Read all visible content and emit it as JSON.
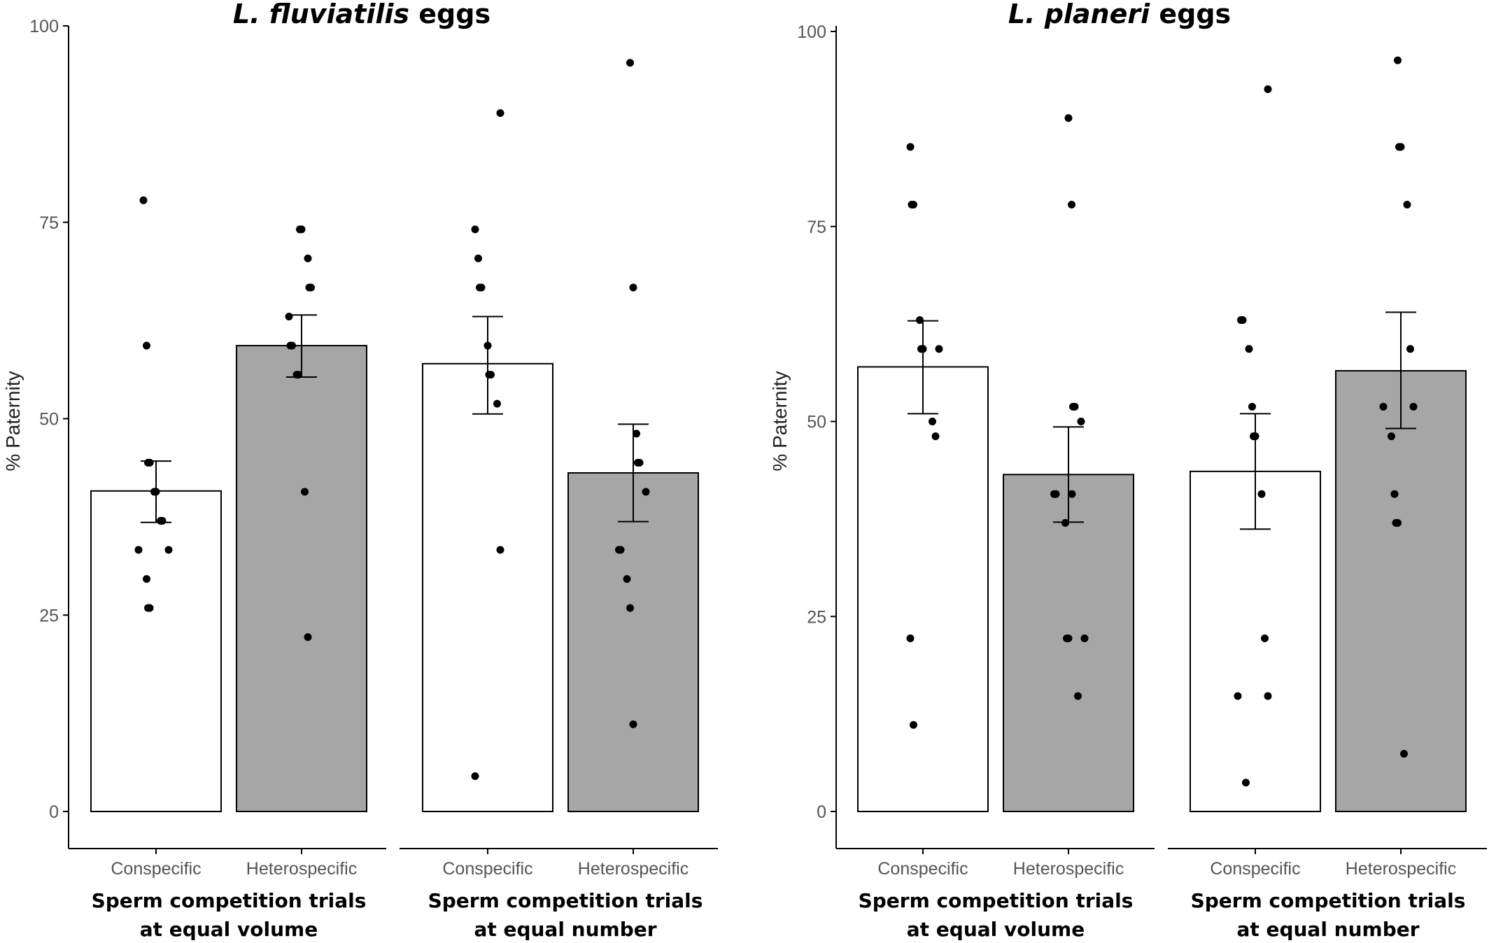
{
  "colors": {
    "conspecific_fill": "#ffffff",
    "heterospecific_fill": "#a6a6a6",
    "bar_stroke": "#000000",
    "point": "#000000",
    "axis": "#000000",
    "tick_text": "#555555"
  },
  "chart_data": [
    {
      "type": "bar",
      "title_italic": "L. fluviatilis",
      "title_rest": " eggs",
      "ylabel": "% Paternity",
      "ylim": [
        0,
        100
      ],
      "yticks": [
        "0",
        "25",
        "50",
        "75",
        "100"
      ],
      "grid": false,
      "groups": [
        {
          "label_line1": "Sperm competition trials",
          "label_line2": "at equal volume",
          "bars": [
            {
              "category": "Conspecific",
              "value": 40.8,
              "err_low": 36.8,
              "err_high": 44.6,
              "points": [
                77.8,
                59.3,
                44.4,
                44.4,
                40.7,
                40.7,
                37.0,
                37.0,
                33.3,
                33.3,
                29.6,
                25.9,
                25.9
              ]
            },
            {
              "category": "Heterospecific",
              "value": 59.3,
              "err_low": 55.3,
              "err_high": 63.2,
              "points": [
                74.1,
                74.1,
                70.4,
                66.7,
                66.7,
                63.0,
                59.3,
                59.3,
                55.6,
                55.6,
                40.7,
                22.2
              ]
            }
          ]
        },
        {
          "label_line1": "Sperm competition trials",
          "label_line2": "at equal number",
          "bars": [
            {
              "category": "Conspecific",
              "value": 57.0,
              "err_low": 50.6,
              "err_high": 63.0,
              "points": [
                88.9,
                74.1,
                70.4,
                66.7,
                66.7,
                59.3,
                55.6,
                55.6,
                51.9,
                33.3,
                4.5
              ]
            },
            {
              "category": "Heterospecific",
              "value": 43.1,
              "err_low": 36.9,
              "err_high": 49.3,
              "points": [
                95.3,
                66.7,
                48.1,
                44.4,
                44.4,
                40.7,
                33.3,
                33.3,
                29.6,
                25.9,
                11.1
              ]
            }
          ]
        }
      ]
    },
    {
      "type": "bar",
      "title_italic": "L. planeri",
      "title_rest": " eggs",
      "ylabel": "% Paternity",
      "ylim": [
        0,
        100
      ],
      "yticks": [
        "0",
        "25",
        "50",
        "75",
        "100"
      ],
      "grid": false,
      "groups": [
        {
          "label_line1": "Sperm competition trials",
          "label_line2": "at equal volume",
          "bars": [
            {
              "category": "Conspecific",
              "value": 57.0,
              "err_low": 51.0,
              "err_high": 62.9,
              "points": [
                85.2,
                77.8,
                77.8,
                63.0,
                59.3,
                59.3,
                59.3,
                50.0,
                48.1,
                22.2,
                11.1
              ]
            },
            {
              "category": "Heterospecific",
              "value": 43.2,
              "err_low": 37.1,
              "err_high": 49.3,
              "points": [
                88.9,
                77.8,
                51.9,
                51.9,
                50.0,
                40.7,
                40.7,
                40.7,
                37.0,
                22.2,
                22.2,
                22.2,
                14.8
              ]
            }
          ]
        },
        {
          "label_line1": "Sperm competition trials",
          "label_line2": "at equal number",
          "bars": [
            {
              "category": "Conspecific",
              "value": 43.6,
              "err_low": 36.2,
              "err_high": 51.0,
              "points": [
                92.6,
                63.0,
                63.0,
                59.3,
                51.9,
                48.1,
                48.1,
                40.7,
                22.2,
                14.8,
                14.8,
                3.7
              ]
            },
            {
              "category": "Heterospecific",
              "value": 56.5,
              "err_low": 49.1,
              "err_high": 64.0,
              "points": [
                96.3,
                85.2,
                85.2,
                77.8,
                59.3,
                51.9,
                51.9,
                48.1,
                40.7,
                37.0,
                37.0,
                7.4
              ]
            }
          ]
        }
      ]
    }
  ]
}
